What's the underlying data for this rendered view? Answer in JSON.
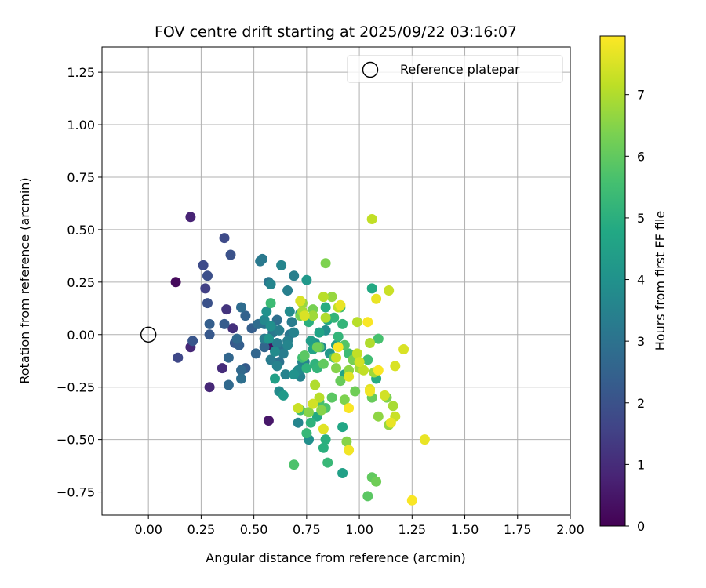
{
  "chart_data": {
    "type": "scatter",
    "title": "FOV centre drift starting at 2025/09/22 03:16:07",
    "xlabel": "Angular distance from reference (arcmin)",
    "ylabel": "Rotation from reference (arcmin)",
    "colorbar_label": "Hours from first FF file",
    "xlim": [
      -0.22,
      2.0
    ],
    "ylim": [
      -0.86,
      1.37
    ],
    "clim": [
      0,
      7.95
    ],
    "grid": true,
    "legend": {
      "label": "Reference platepar",
      "placement": "top-right"
    },
    "reference_point": {
      "x": 0.0,
      "y": 0.0
    },
    "x_ticks": [
      {
        "v": 0.0,
        "label": "0.00"
      },
      {
        "v": 0.25,
        "label": "0.25"
      },
      {
        "v": 0.5,
        "label": "0.50"
      },
      {
        "v": 0.75,
        "label": "0.75"
      },
      {
        "v": 1.0,
        "label": "1.00"
      },
      {
        "v": 1.25,
        "label": "1.25"
      },
      {
        "v": 1.5,
        "label": "1.50"
      },
      {
        "v": 1.75,
        "label": "1.75"
      },
      {
        "v": 2.0,
        "label": "2.00"
      }
    ],
    "y_ticks": [
      {
        "v": -0.75,
        "label": "−0.75"
      },
      {
        "v": -0.5,
        "label": "−0.50"
      },
      {
        "v": -0.25,
        "label": "−0.25"
      },
      {
        "v": 0.0,
        "label": "0.00"
      },
      {
        "v": 0.25,
        "label": "0.25"
      },
      {
        "v": 0.5,
        "label": "0.50"
      },
      {
        "v": 0.75,
        "label": "0.75"
      },
      {
        "v": 1.0,
        "label": "1.00"
      },
      {
        "v": 1.25,
        "label": "1.25"
      }
    ],
    "colorbar_ticks": [
      {
        "v": 0,
        "label": "0"
      },
      {
        "v": 1,
        "label": "1"
      },
      {
        "v": 2,
        "label": "2"
      },
      {
        "v": 3,
        "label": "3"
      },
      {
        "v": 4,
        "label": "4"
      },
      {
        "v": 5,
        "label": "5"
      },
      {
        "v": 6,
        "label": "6"
      },
      {
        "v": 7,
        "label": "7"
      }
    ],
    "points": [
      [
        0.13,
        0.25,
        0.2
      ],
      [
        0.57,
        -0.05,
        0.3
      ],
      [
        0.57,
        -0.41,
        0.5
      ],
      [
        0.2,
        0.56,
        0.8
      ],
      [
        0.2,
        -0.06,
        0.9
      ],
      [
        0.29,
        -0.25,
        0.9
      ],
      [
        0.35,
        -0.16,
        1.0
      ],
      [
        0.4,
        0.03,
        1.1
      ],
      [
        0.37,
        0.12,
        1.2
      ],
      [
        0.27,
        0.22,
        1.5
      ],
      [
        0.14,
        -0.11,
        1.7
      ],
      [
        0.26,
        0.33,
        1.8
      ],
      [
        0.36,
        0.46,
        1.8
      ],
      [
        0.28,
        0.28,
        1.9
      ],
      [
        0.28,
        0.15,
        2.0
      ],
      [
        0.39,
        0.38,
        2.0
      ],
      [
        0.21,
        -0.03,
        2.1
      ],
      [
        0.29,
        0.0,
        2.2
      ],
      [
        0.41,
        -0.04,
        2.2
      ],
      [
        0.46,
        -0.16,
        2.3
      ],
      [
        0.36,
        0.05,
        2.3
      ],
      [
        0.43,
        -0.05,
        2.4
      ],
      [
        0.49,
        0.03,
        2.4
      ],
      [
        0.29,
        0.05,
        2.4
      ],
      [
        0.46,
        0.09,
        2.5
      ],
      [
        0.38,
        -0.11,
        2.6
      ],
      [
        0.55,
        -0.06,
        2.6
      ],
      [
        0.44,
        -0.17,
        2.7
      ],
      [
        0.51,
        -0.09,
        2.6
      ],
      [
        0.38,
        -0.24,
        2.7
      ],
      [
        0.42,
        -0.02,
        2.7
      ],
      [
        0.44,
        0.13,
        2.8
      ],
      [
        0.52,
        0.05,
        2.8
      ],
      [
        0.44,
        -0.21,
        2.9
      ],
      [
        0.57,
        -0.02,
        2.9
      ],
      [
        0.61,
        0.07,
        2.9
      ],
      [
        0.63,
        -0.07,
        3.0
      ],
      [
        0.55,
        0.05,
        3.0
      ],
      [
        0.59,
        0.01,
        3.0
      ],
      [
        0.62,
        -0.13,
        3.0
      ],
      [
        0.67,
        0.0,
        3.1
      ],
      [
        0.57,
        0.25,
        3.1
      ],
      [
        0.53,
        0.35,
        3.2
      ],
      [
        0.54,
        0.36,
        3.2
      ],
      [
        0.6,
        0.02,
        3.2
      ],
      [
        0.58,
        -0.12,
        3.3
      ],
      [
        0.61,
        -0.04,
        3.3
      ],
      [
        0.64,
        -0.09,
        3.3
      ],
      [
        0.68,
        0.06,
        3.3
      ],
      [
        0.55,
        -0.02,
        3.3
      ],
      [
        0.66,
        0.21,
        3.4
      ],
      [
        0.69,
        0.28,
        3.4
      ],
      [
        0.58,
        0.04,
        3.4
      ],
      [
        0.62,
        0.02,
        3.4
      ],
      [
        0.66,
        -0.03,
        3.4
      ],
      [
        0.61,
        -0.15,
        3.5
      ],
      [
        0.69,
        0.01,
        3.5
      ],
      [
        0.72,
        -0.2,
        3.5
      ],
      [
        0.65,
        -0.19,
        3.5
      ],
      [
        0.74,
        -0.13,
        3.5
      ],
      [
        0.58,
        0.24,
        3.6
      ],
      [
        0.63,
        0.33,
        3.6
      ],
      [
        0.66,
        -0.05,
        3.6
      ],
      [
        0.71,
        -0.42,
        3.6
      ],
      [
        0.73,
        -0.13,
        3.6
      ],
      [
        0.55,
        0.07,
        3.7
      ],
      [
        0.6,
        -0.08,
        3.8
      ],
      [
        0.62,
        -0.27,
        3.8
      ],
      [
        0.67,
        0.11,
        3.8
      ],
      [
        0.71,
        -0.17,
        3.8
      ],
      [
        0.82,
        -0.06,
        3.8
      ],
      [
        0.84,
        0.02,
        3.9
      ],
      [
        0.58,
        0.04,
        3.9
      ],
      [
        0.76,
        -0.5,
        3.9
      ],
      [
        0.69,
        -0.19,
        4.0
      ],
      [
        0.56,
        0.11,
        4.0
      ],
      [
        0.72,
        0.1,
        4.0
      ],
      [
        0.79,
        -0.04,
        4.1
      ],
      [
        0.57,
        -0.02,
        4.1
      ],
      [
        0.75,
        0.26,
        4.2
      ],
      [
        0.86,
        -0.09,
        4.2
      ],
      [
        0.64,
        -0.29,
        4.3
      ],
      [
        0.77,
        -0.03,
        4.4
      ],
      [
        0.89,
        -0.05,
        4.4
      ],
      [
        0.92,
        -0.66,
        4.5
      ],
      [
        0.6,
        -0.21,
        4.5
      ],
      [
        0.78,
        -0.07,
        4.6
      ],
      [
        0.81,
        0.01,
        4.6
      ],
      [
        0.93,
        -0.19,
        4.6
      ],
      [
        0.92,
        -0.44,
        4.7
      ],
      [
        0.8,
        -0.39,
        4.8
      ],
      [
        0.85,
        0.07,
        4.8
      ],
      [
        1.06,
        0.22,
        4.8
      ],
      [
        1.08,
        -0.21,
        4.9
      ],
      [
        0.84,
        0.13,
        4.9
      ],
      [
        0.76,
        0.06,
        5.0
      ],
      [
        0.84,
        -0.5,
        5.0
      ],
      [
        0.83,
        -0.54,
        5.0
      ],
      [
        0.75,
        -0.16,
        5.1
      ],
      [
        0.77,
        -0.42,
        5.1
      ],
      [
        0.79,
        -0.14,
        5.1
      ],
      [
        0.8,
        -0.16,
        5.2
      ],
      [
        0.92,
        0.05,
        5.2
      ],
      [
        0.9,
        -0.01,
        5.2
      ],
      [
        0.88,
        0.08,
        5.2
      ],
      [
        0.75,
        -0.47,
        5.3
      ],
      [
        0.85,
        -0.61,
        5.3
      ],
      [
        0.91,
        0.13,
        5.4
      ],
      [
        0.95,
        -0.09,
        5.4
      ],
      [
        0.58,
        0.15,
        5.4
      ],
      [
        0.72,
        -0.36,
        5.5
      ],
      [
        1.04,
        -0.12,
        5.5
      ],
      [
        0.73,
        -0.11,
        5.5
      ],
      [
        0.81,
        -0.32,
        5.6
      ],
      [
        1.09,
        -0.02,
        5.6
      ],
      [
        0.69,
        -0.62,
        5.7
      ],
      [
        0.84,
        -0.35,
        5.7
      ],
      [
        0.81,
        -0.06,
        5.8
      ],
      [
        0.88,
        -0.11,
        5.8
      ],
      [
        0.93,
        -0.05,
        5.8
      ],
      [
        0.74,
        -0.1,
        5.9
      ],
      [
        0.87,
        -0.3,
        5.9
      ],
      [
        1.04,
        -0.77,
        5.9
      ],
      [
        1.06,
        -0.68,
        6.0
      ],
      [
        0.83,
        -0.14,
        6.0
      ],
      [
        0.91,
        -0.22,
        6.1
      ],
      [
        1.06,
        -0.3,
        6.1
      ],
      [
        1.08,
        -0.7,
        6.2
      ],
      [
        0.8,
        -0.06,
        6.2
      ],
      [
        0.98,
        -0.27,
        6.2
      ],
      [
        0.97,
        -0.12,
        6.3
      ],
      [
        0.72,
        0.09,
        6.3
      ],
      [
        0.78,
        0.12,
        6.3
      ],
      [
        0.84,
        0.34,
        6.4
      ],
      [
        1.13,
        -0.3,
        6.4
      ],
      [
        0.93,
        -0.31,
        6.4
      ],
      [
        0.76,
        -0.37,
        6.5
      ],
      [
        0.82,
        -0.36,
        6.5
      ],
      [
        0.89,
        -0.16,
        6.5
      ],
      [
        0.94,
        -0.51,
        6.5
      ],
      [
        1.09,
        -0.39,
        6.6
      ],
      [
        0.95,
        -0.17,
        6.6
      ],
      [
        0.87,
        0.18,
        6.7
      ],
      [
        0.73,
        0.15,
        6.7
      ],
      [
        1.14,
        -0.43,
        6.7
      ],
      [
        0.78,
        0.09,
        6.8
      ],
      [
        1.07,
        -0.18,
        6.8
      ],
      [
        1.0,
        -0.16,
        6.8
      ],
      [
        1.16,
        -0.34,
        6.9
      ],
      [
        0.73,
        0.11,
        6.9
      ],
      [
        0.79,
        -0.24,
        7.0
      ],
      [
        1.05,
        -0.04,
        7.0
      ],
      [
        0.84,
        0.08,
        7.0
      ],
      [
        0.81,
        -0.3,
        7.1
      ],
      [
        0.83,
        0.18,
        7.1
      ],
      [
        0.99,
        0.06,
        7.1
      ],
      [
        1.06,
        0.55,
        7.2
      ],
      [
        0.99,
        -0.09,
        7.2
      ],
      [
        0.9,
        0.13,
        7.2
      ],
      [
        1.02,
        -0.17,
        7.2
      ],
      [
        0.71,
        -0.35,
        7.3
      ],
      [
        1.17,
        -0.39,
        7.3
      ],
      [
        1.14,
        0.21,
        7.3
      ],
      [
        0.89,
        -0.11,
        7.3
      ],
      [
        1.12,
        -0.29,
        7.4
      ],
      [
        0.78,
        -0.33,
        7.4
      ],
      [
        1.0,
        -0.13,
        7.4
      ],
      [
        0.72,
        0.16,
        7.5
      ],
      [
        0.74,
        0.09,
        7.5
      ],
      [
        1.21,
        -0.07,
        7.5
      ],
      [
        1.17,
        -0.15,
        7.5
      ],
      [
        0.83,
        -0.45,
        7.6
      ],
      [
        1.05,
        -0.26,
        7.6
      ],
      [
        0.95,
        -0.2,
        7.6
      ],
      [
        1.31,
        -0.5,
        7.7
      ],
      [
        1.08,
        0.17,
        7.7
      ],
      [
        0.91,
        0.14,
        7.7
      ],
      [
        1.15,
        -0.42,
        7.7
      ],
      [
        1.05,
        -0.27,
        7.8
      ],
      [
        0.95,
        -0.55,
        7.8
      ],
      [
        1.25,
        -0.79,
        7.9
      ],
      [
        0.9,
        -0.06,
        7.9
      ],
      [
        1.04,
        0.06,
        7.9
      ],
      [
        0.95,
        -0.35,
        7.9
      ],
      [
        1.09,
        -0.17,
        7.9
      ]
    ]
  }
}
